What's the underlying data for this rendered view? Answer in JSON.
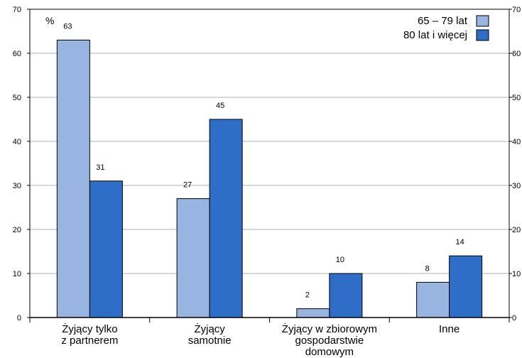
{
  "chart_data": {
    "type": "bar",
    "unit_label": "%",
    "categories": [
      [
        "Żyjący tylko",
        "z partnerem"
      ],
      [
        "Żyjący",
        "samotnie"
      ],
      [
        "Żyjący w zbiorowym",
        "gospodarstwie",
        "domowym"
      ],
      [
        "Inne"
      ]
    ],
    "series": [
      {
        "name": "65 – 79 lat",
        "color": "#98b5e2",
        "values": [
          63,
          27,
          2,
          8
        ]
      },
      {
        "name": "80 lat i więcej",
        "color": "#2f6ec8",
        "values": [
          31,
          45,
          10,
          14
        ]
      }
    ],
    "ylim": [
      0,
      70
    ],
    "yticks": [
      0,
      10,
      20,
      30,
      40,
      50,
      60,
      70
    ],
    "grid": true,
    "legend_position": "top-right",
    "right_axis": true
  }
}
